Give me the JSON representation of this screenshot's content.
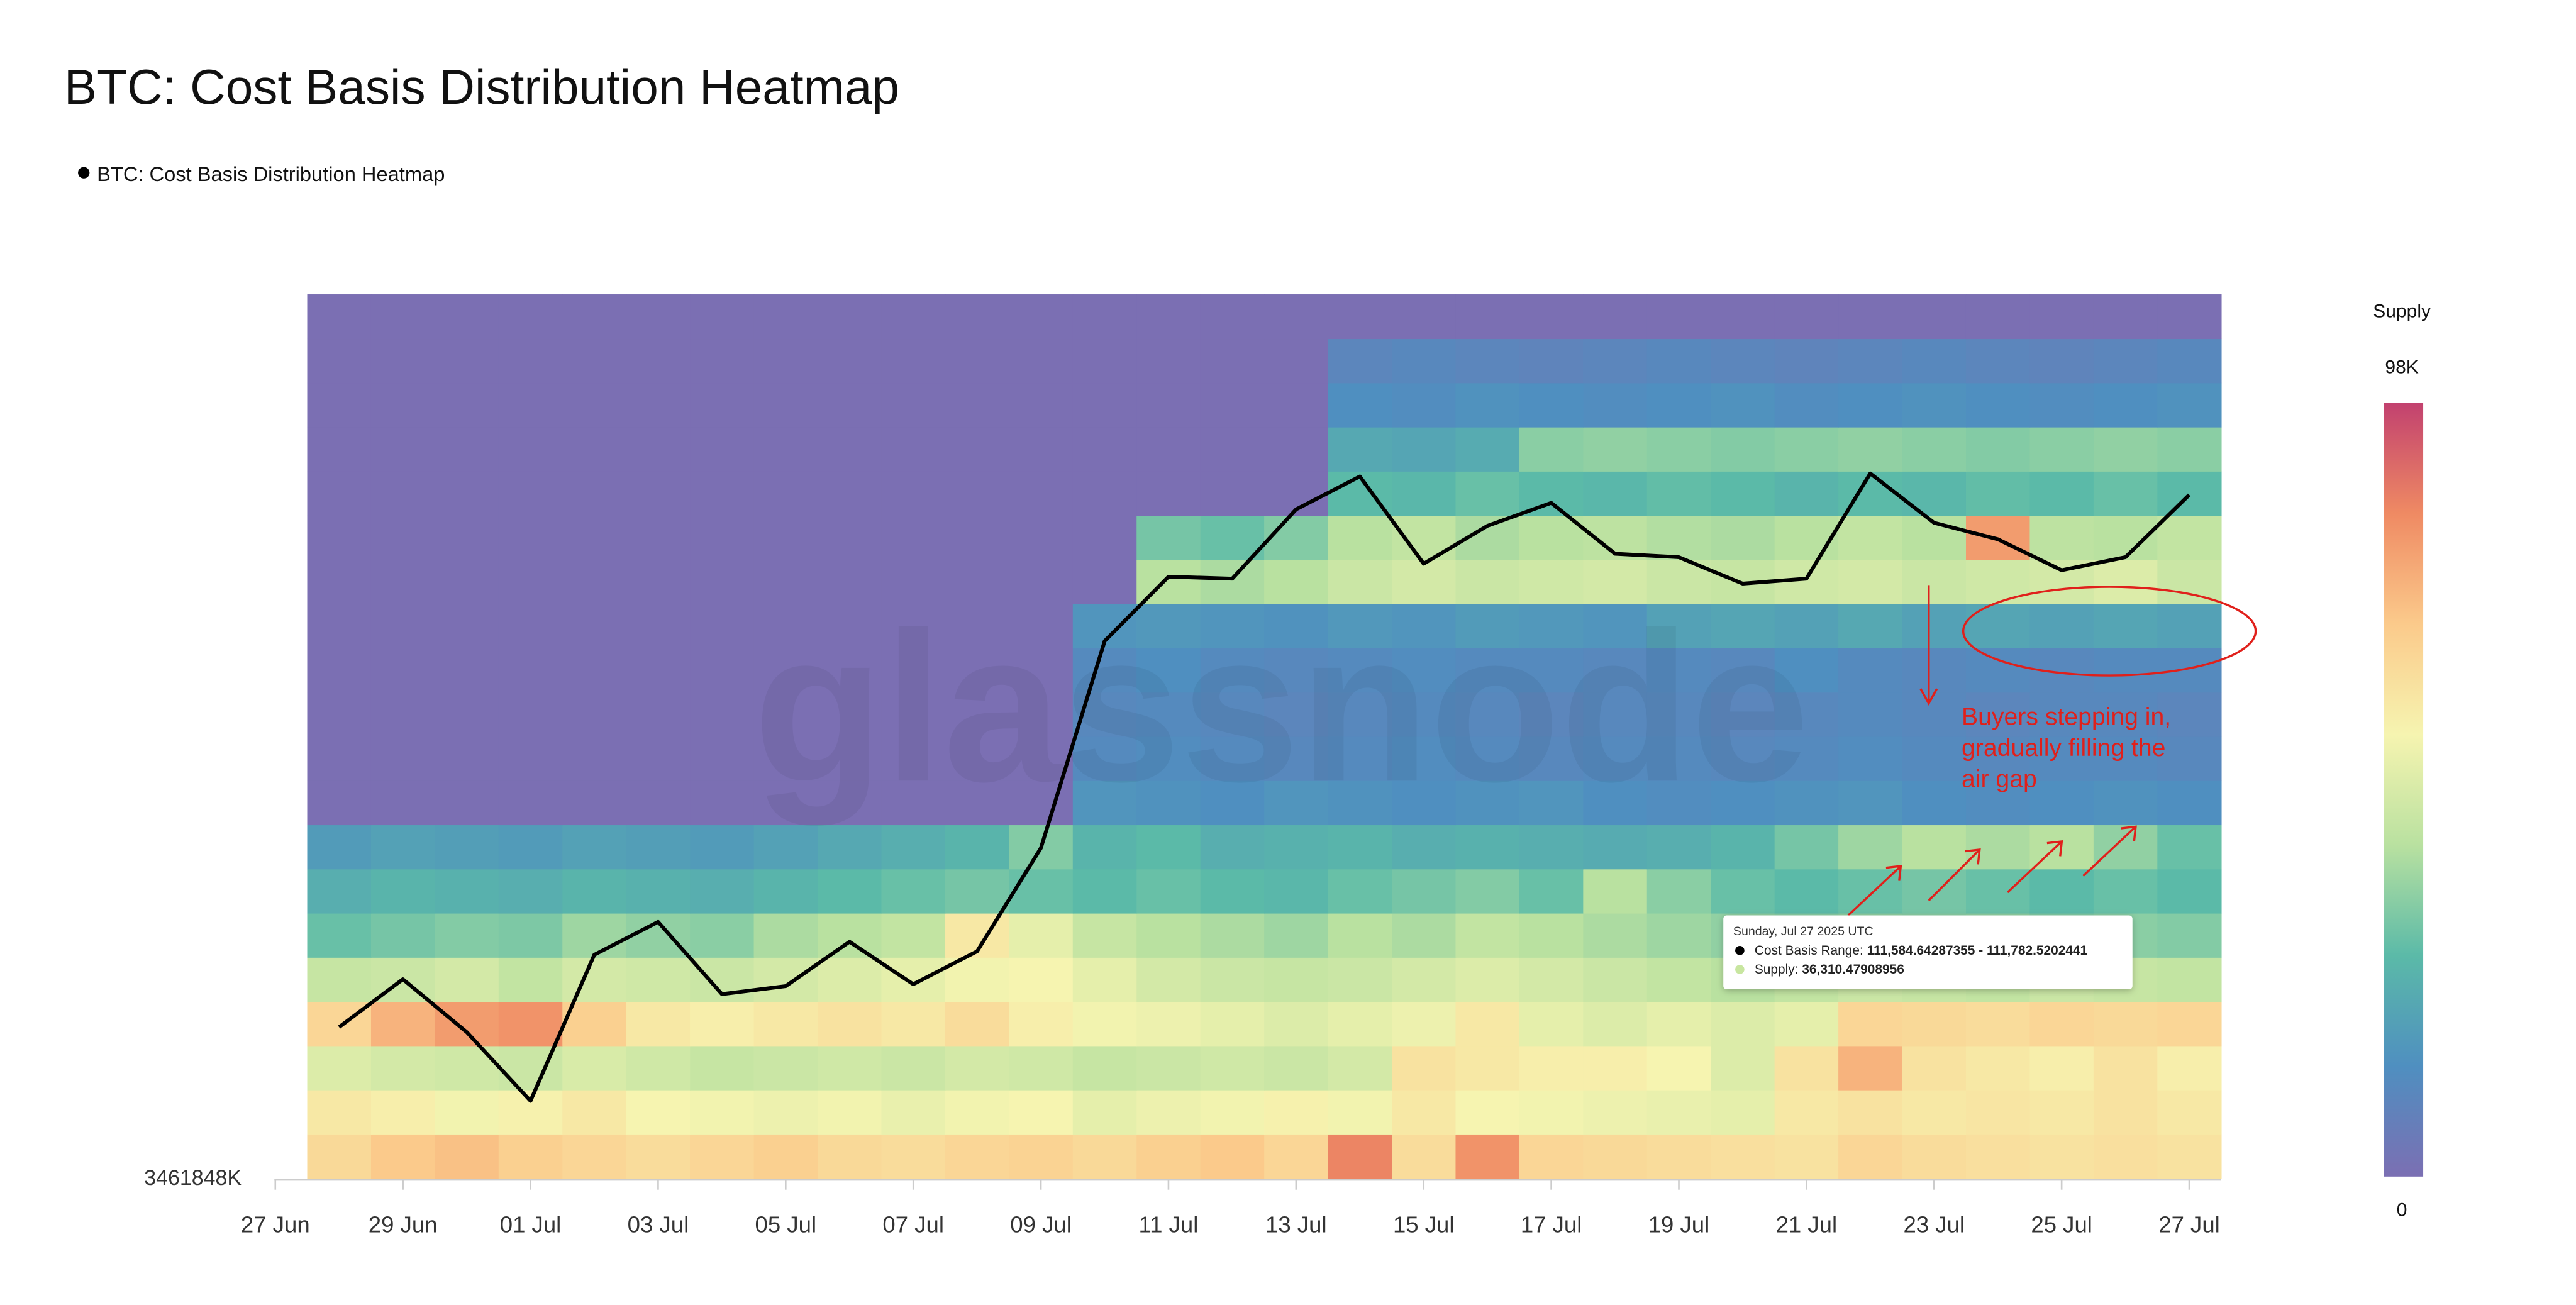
{
  "chart_data": {
    "type": "heatmap-line",
    "title": "BTC: Cost Basis Distribution Heatmap",
    "watermark": "glassnode",
    "ylabel_bottom": "3461848K",
    "colorbar_title": "Supply",
    "colorbar_ticks": [
      {
        "value": 98000,
        "label": "98K"
      },
      0
    ],
    "colorbar_lim": [
      0,
      98000
    ],
    "colorscale": [
      "#7b6fb3",
      "#4f8fc0",
      "#5bbaa8",
      "#b9e1a0",
      "#f6f4b0",
      "#fbca8b",
      "#ef8a63",
      "#c2416f"
    ],
    "ylim": [
      103700,
      126800
    ],
    "ybins": [
      103700,
      104855,
      106010,
      107165,
      108320,
      109475,
      110630,
      111785,
      112940,
      114095,
      115250,
      116405,
      117560,
      118715,
      119870,
      121025,
      122180,
      123335,
      124490,
      125645,
      126800
    ],
    "x": [
      "28 Jun",
      "29 Jun",
      "30 Jun",
      "01 Jul",
      "02 Jul",
      "03 Jul",
      "04 Jul",
      "05 Jul",
      "06 Jul",
      "07 Jul",
      "08 Jul",
      "09 Jul",
      "10 Jul",
      "11 Jul",
      "12 Jul",
      "13 Jul",
      "14 Jul",
      "15 Jul",
      "16 Jul",
      "17 Jul",
      "18 Jul",
      "19 Jul",
      "20 Jul",
      "21 Jul",
      "22 Jul",
      "23 Jul",
      "24 Jul",
      "25 Jul",
      "26 Jul",
      "27 Jul"
    ],
    "xticks": [
      "27 Jun",
      "29 Jun",
      "01 Jul",
      "03 Jul",
      "05 Jul",
      "07 Jul",
      "09 Jul",
      "11 Jul",
      "13 Jul",
      "15 Jul",
      "17 Jul",
      "19 Jul",
      "21 Jul",
      "23 Jul",
      "25 Jul",
      "27 Jul"
    ],
    "series": [
      {
        "name": "BTC: Cost Basis Distribution Heatmap",
        "color": "#000000",
        "values": [
          107650,
          108900,
          107520,
          105720,
          109540,
          110400,
          108510,
          108720,
          109880,
          108770,
          109630,
          112330,
          117740,
          119420,
          119370,
          121180,
          122040,
          119760,
          120750,
          121350,
          120020,
          119930,
          119240,
          119370,
          122120,
          120830,
          120400,
          119590,
          119930,
          121560
        ]
      }
    ],
    "z": [
      [
        65000,
        70000,
        72000,
        68000,
        66000,
        64000,
        66000,
        68000,
        65000,
        64000,
        66000,
        67000,
        65000,
        68000,
        70000,
        66000,
        85000,
        64000,
        82000,
        66000,
        65000,
        64000,
        63000,
        62000,
        66000,
        64000,
        63000,
        62000,
        63000,
        62000
      ],
      [
        60000,
        58000,
        55000,
        57000,
        60000,
        56000,
        55000,
        54000,
        55000,
        53000,
        55000,
        56000,
        52000,
        54000,
        55000,
        57000,
        55000,
        60000,
        56000,
        55000,
        54000,
        53000,
        52000,
        60000,
        62000,
        60000,
        61000,
        60000,
        62000,
        60000
      ],
      [
        50000,
        48000,
        47000,
        46000,
        49000,
        47000,
        45000,
        46000,
        47000,
        46000,
        48000,
        47000,
        45000,
        46000,
        47000,
        46000,
        48000,
        62000,
        60000,
        58000,
        58000,
        56000,
        50000,
        62000,
        75000,
        62000,
        60000,
        58000,
        62000,
        58000
      ],
      [
        66000,
        75000,
        80000,
        82000,
        68000,
        60000,
        58000,
        60000,
        62000,
        60000,
        64000,
        58000,
        55000,
        54000,
        52000,
        50000,
        52000,
        54000,
        60000,
        52000,
        50000,
        52000,
        50000,
        52000,
        66000,
        65000,
        64000,
        66000,
        65000,
        66000
      ],
      [
        45000,
        46000,
        48000,
        44000,
        48000,
        47000,
        46000,
        48000,
        50000,
        52000,
        55000,
        56000,
        52000,
        48000,
        46000,
        45000,
        46000,
        48000,
        50000,
        48000,
        46000,
        44000,
        42000,
        44000,
        46000,
        45000,
        44000,
        46000,
        45000,
        44000
      ],
      [
        30000,
        32000,
        34000,
        33000,
        38000,
        36000,
        35000,
        40000,
        42000,
        44000,
        60000,
        52000,
        45000,
        42000,
        40000,
        38000,
        42000,
        40000,
        44000,
        42000,
        40000,
        38000,
        36000,
        35000,
        36000,
        35000,
        36000,
        34000,
        35000,
        34000
      ],
      [
        24000,
        26000,
        25000,
        24000,
        26000,
        25000,
        24000,
        26000,
        28000,
        30000,
        32000,
        30000,
        28000,
        30000,
        28000,
        27000,
        30000,
        32000,
        34000,
        30000,
        42000,
        35000,
        30000,
        28000,
        30000,
        32000,
        30000,
        28000,
        30000,
        28000
      ],
      [
        18000,
        20000,
        19000,
        18000,
        20000,
        19000,
        18000,
        20000,
        22000,
        24000,
        26000,
        34000,
        26000,
        28000,
        24000,
        25000,
        26000,
        24000,
        25000,
        24000,
        23000,
        24000,
        26000,
        32000,
        38000,
        42000,
        40000,
        42000,
        36000,
        30000
      ],
      [
        0,
        0,
        0,
        0,
        0,
        0,
        0,
        0,
        0,
        0,
        0,
        0,
        16000,
        15000,
        14000,
        16000,
        15000,
        14000,
        15000,
        16000,
        14000,
        13000,
        14000,
        15000,
        16000,
        14000,
        13000,
        14000,
        15000,
        14000
      ],
      [
        0,
        0,
        0,
        0,
        0,
        0,
        0,
        0,
        0,
        0,
        0,
        0,
        12000,
        13000,
        12000,
        11000,
        12000,
        13000,
        12000,
        11000,
        12000,
        12000,
        11000,
        12000,
        13000,
        12000,
        11000,
        12000,
        12000,
        11000
      ],
      [
        0,
        0,
        0,
        0,
        0,
        0,
        0,
        0,
        0,
        0,
        0,
        0,
        11000,
        12000,
        11000,
        10000,
        11000,
        12000,
        11000,
        10000,
        11000,
        11000,
        10000,
        11000,
        12000,
        11000,
        10000,
        11000,
        11000,
        10000
      ],
      [
        0,
        0,
        0,
        0,
        0,
        0,
        0,
        0,
        0,
        0,
        0,
        0,
        12000,
        14000,
        12000,
        11000,
        12000,
        13000,
        12000,
        12000,
        11000,
        12000,
        11000,
        14000,
        12000,
        11000,
        12000,
        11000,
        12000,
        12000
      ],
      [
        0,
        0,
        0,
        0,
        0,
        0,
        0,
        0,
        0,
        0,
        0,
        0,
        16000,
        17000,
        16000,
        15000,
        17000,
        16000,
        18000,
        17000,
        16000,
        20000,
        21000,
        20000,
        22000,
        20000,
        21000,
        20000,
        21000,
        20000
      ],
      [
        0,
        0,
        0,
        0,
        0,
        0,
        0,
        0,
        0,
        0,
        0,
        0,
        0,
        42000,
        40000,
        42000,
        46000,
        48000,
        46000,
        47000,
        48000,
        46000,
        45000,
        47000,
        48000,
        46000,
        47000,
        48000,
        50000,
        46000
      ],
      [
        0,
        0,
        0,
        0,
        0,
        0,
        0,
        0,
        0,
        0,
        0,
        0,
        0,
        32000,
        30000,
        34000,
        42000,
        44000,
        40000,
        42000,
        43000,
        41000,
        40000,
        42000,
        44000,
        42000,
        80000,
        43000,
        42000,
        44000
      ],
      [
        0,
        0,
        0,
        0,
        0,
        0,
        0,
        0,
        0,
        0,
        0,
        0,
        0,
        0,
        0,
        0,
        28000,
        27000,
        30000,
        28000,
        27000,
        29000,
        28000,
        26000,
        28000,
        27000,
        29000,
        28000,
        30000,
        28000
      ],
      [
        0,
        0,
        0,
        0,
        0,
        0,
        0,
        0,
        0,
        0,
        0,
        0,
        0,
        0,
        0,
        0,
        22000,
        21000,
        23000,
        35000,
        36000,
        35000,
        34000,
        35000,
        36000,
        35000,
        34000,
        35000,
        36000,
        35000
      ],
      [
        0,
        0,
        0,
        0,
        0,
        0,
        0,
        0,
        0,
        0,
        0,
        0,
        0,
        0,
        0,
        0,
        14000,
        13000,
        15000,
        14000,
        13000,
        14000,
        15000,
        13000,
        14000,
        15000,
        14000,
        13000,
        14000,
        15000
      ],
      [
        0,
        0,
        0,
        0,
        0,
        0,
        0,
        0,
        0,
        0,
        0,
        0,
        0,
        0,
        0,
        0,
        10000,
        11000,
        10000,
        9000,
        10000,
        11000,
        10000,
        9000,
        10000,
        11000,
        10000,
        9000,
        10000,
        11000
      ],
      [
        0,
        0,
        0,
        0,
        0,
        0,
        0,
        0,
        0,
        0,
        0,
        0,
        0,
        0,
        0,
        0,
        0,
        0,
        0,
        0,
        0,
        0,
        0,
        0,
        0,
        0,
        0,
        0,
        0,
        0
      ]
    ],
    "tooltip": {
      "title": "Sunday, Jul 27 2025 UTC",
      "items": [
        {
          "label": "Cost Basis Range:",
          "value": "111,584.64287355 - 111,782.5202441",
          "color": "#000000"
        },
        {
          "label": "Supply:",
          "value": "36,310.47908956",
          "color": "#c8e6a0"
        }
      ]
    },
    "annotation": [
      "Buyers stepping in,",
      "gradually filling the",
      "air gap"
    ]
  }
}
